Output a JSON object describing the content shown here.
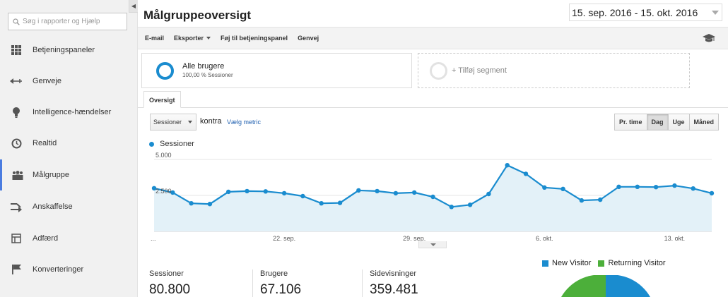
{
  "sidebar": {
    "search_placeholder": "Søg i rapporter og Hjælp",
    "items": [
      {
        "label": "Betjeningspaneler",
        "icon": "grid-icon"
      },
      {
        "label": "Genveje",
        "icon": "shortcut-arrow-icon"
      },
      {
        "label": "Intelligence-hændelser",
        "icon": "lightbulb-icon"
      },
      {
        "label": "Realtid",
        "icon": "clock-icon"
      },
      {
        "label": "Målgruppe",
        "icon": "people-icon",
        "active": true
      },
      {
        "label": "Anskaffelse",
        "icon": "acquisition-icon"
      },
      {
        "label": "Adfærd",
        "icon": "behavior-icon"
      },
      {
        "label": "Konverteringer",
        "icon": "flag-icon"
      }
    ]
  },
  "header": {
    "title": "Målgruppeoversigt",
    "date_range": "15. sep. 2016 - 15. okt. 2016"
  },
  "toolbar": {
    "email": "E-mail",
    "export": "Eksporter",
    "add_dashboard": "Føj til betjeningspanel",
    "shortcut": "Genvej"
  },
  "segments": {
    "all_users": {
      "name": "Alle brugere",
      "sub": "100,00 % Sessioner"
    },
    "add_segment": "+ Tilføj segment"
  },
  "tabs": {
    "overview": "Oversigt"
  },
  "controls": {
    "metric": "Sessioner",
    "versus": "kontra",
    "choose_metric": "Vælg metric",
    "intervals": [
      "Pr. time",
      "Dag",
      "Uge",
      "Måned"
    ],
    "active_interval": "Dag"
  },
  "chart_data": {
    "type": "area",
    "series": [
      {
        "name": "Sessioner",
        "color": "#1a8ccf",
        "values": [
          3000,
          2700,
          1950,
          1900,
          2750,
          2800,
          2780,
          2650,
          2450,
          1950,
          1980,
          2850,
          2800,
          2650,
          2700,
          2400,
          1700,
          1850,
          2600,
          4600,
          4000,
          3050,
          2950,
          2150,
          2200,
          3100,
          3100,
          3080,
          3180,
          2980,
          2650
        ]
      }
    ],
    "x_tick_labels": [
      "...",
      "22. sep.",
      "29. sep.",
      "6. okt.",
      "13. okt."
    ],
    "y_tick_labels": [
      "5.000",
      "2.500"
    ],
    "ylim": [
      0,
      5000
    ],
    "grid": true
  },
  "kpis": [
    {
      "label": "Sessioner",
      "value": "80.800"
    },
    {
      "label": "Brugere",
      "value": "67.106"
    },
    {
      "label": "Sidevisninger",
      "value": "359.481"
    }
  ],
  "pie": {
    "legend": [
      {
        "label": "New Visitor",
        "color": "#1a8ccf"
      },
      {
        "label": "Returning Visitor",
        "color": "#4caf3a"
      }
    ]
  }
}
